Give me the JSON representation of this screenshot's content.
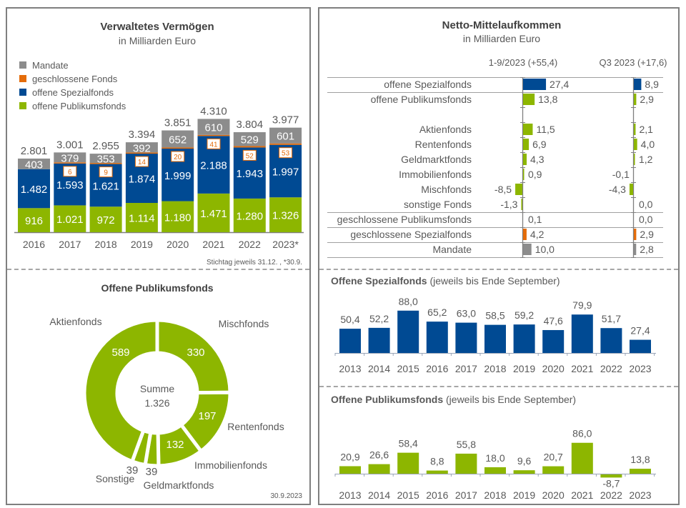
{
  "colors": {
    "mandate": "#8c8c8c",
    "geschlossene": "#e46c0a",
    "spezial": "#004a93",
    "publikums": "#8db600",
    "text": "#595959",
    "text_dark": "#404040",
    "axis": "#7f7f7f"
  },
  "chart_data": [
    {
      "id": "verwaltetes-vermoegen",
      "type": "bar",
      "stacked": true,
      "title": "Verwaltetes Vermögen",
      "subtitle": "in Milliarden Euro",
      "categories": [
        "2016",
        "2017",
        "2018",
        "2019",
        "2020",
        "2021",
        "2022",
        "2023*"
      ],
      "series": [
        {
          "name": "offene Publikumsfonds",
          "key": "publikums",
          "values": [
            916,
            1021,
            972,
            1114,
            1180,
            1471,
            1280,
            1326
          ],
          "labels": [
            "916",
            "1.021",
            "972",
            "1.114",
            "1.180",
            "1.471",
            "1.280",
            "1.326"
          ]
        },
        {
          "name": "offene Spezialfonds",
          "key": "spezial",
          "values": [
            1482,
            1593,
            1621,
            1874,
            1999,
            2188,
            1943,
            1997
          ],
          "labels": [
            "1.482",
            "1.593",
            "1.621",
            "1.874",
            "1.999",
            "2.188",
            "1.943",
            "1.997"
          ]
        },
        {
          "name": "geschlossene Fonds",
          "key": "geschlossene",
          "values": [
            0,
            6,
            9,
            14,
            20,
            41,
            52,
            53
          ],
          "labels": [
            "",
            "6",
            "9",
            "14",
            "20",
            "41",
            "52",
            "53"
          ]
        },
        {
          "name": "Mandate",
          "key": "mandate",
          "values": [
            403,
            379,
            353,
            392,
            652,
            610,
            529,
            601
          ],
          "labels": [
            "403",
            "379",
            "353",
            "392",
            "652",
            "610",
            "529",
            "601"
          ]
        }
      ],
      "totals": [
        "2.801",
        "3.001",
        "2.955",
        "3.394",
        "3.851",
        "4.310",
        "3.804",
        "3.977"
      ],
      "legend": [
        "Mandate",
        "geschlossene Fonds",
        "offene Spezialfonds",
        "offene Publikumsfonds"
      ],
      "legend_position": "top-left",
      "footnote": "Stichtag  jeweils 31.12. , *30.9.",
      "ylim": [
        0,
        4600
      ]
    },
    {
      "id": "offene-publikumsfonds-donut",
      "type": "pie",
      "donut": true,
      "title": "Offene Publikumsfonds",
      "center_label": "Summe",
      "center_value": "1.326",
      "slices": [
        {
          "name": "Mischfonds",
          "value": 330,
          "label": "330"
        },
        {
          "name": "Rentenfonds",
          "value": 197,
          "label": "197"
        },
        {
          "name": "Immobilienfonds",
          "value": 132,
          "label": "132"
        },
        {
          "name": "Geldmarktfonds",
          "value": 39,
          "label": "39"
        },
        {
          "name": "Sonstige",
          "value": 39,
          "label": "39"
        },
        {
          "name": "Aktienfonds",
          "value": 589,
          "label": "589"
        }
      ],
      "footnote": "30.9.2023"
    },
    {
      "id": "netto-mittelaufkommen",
      "type": "bar",
      "orientation": "horizontal",
      "title": "Netto-Mittelaufkommen",
      "subtitle": "in Milliarden Euro",
      "columns": [
        "1-9/2023 (+55,4)",
        "Q3 2023 (+17,6)"
      ],
      "rows": [
        {
          "name": "offene Spezialfonds",
          "key": "spezial",
          "values": [
            27.4,
            8.9
          ],
          "labels": [
            "27,4",
            "8,9"
          ],
          "group": 0
        },
        {
          "name": "offene Publikumsfonds",
          "key": "publikums",
          "values": [
            13.8,
            2.9
          ],
          "labels": [
            "13,8",
            "2,9"
          ],
          "group": 0
        },
        {
          "name": "Aktienfonds",
          "key": "publikums",
          "values": [
            11.5,
            2.1
          ],
          "labels": [
            "11,5",
            "2,1"
          ],
          "group": 1
        },
        {
          "name": "Rentenfonds",
          "key": "publikums",
          "values": [
            6.9,
            4.0
          ],
          "labels": [
            "6,9",
            "4,0"
          ],
          "group": 1
        },
        {
          "name": "Geldmarktfonds",
          "key": "publikums",
          "values": [
            4.3,
            1.2
          ],
          "labels": [
            "4,3",
            "1,2"
          ],
          "group": 1
        },
        {
          "name": "Immobilienfonds",
          "key": "publikums",
          "values": [
            0.9,
            -0.1
          ],
          "labels": [
            "0,9",
            "-0,1"
          ],
          "group": 1
        },
        {
          "name": "Mischfonds",
          "key": "publikums",
          "values": [
            -8.5,
            -4.3
          ],
          "labels": [
            "-8,5",
            "-4,3"
          ],
          "group": 1
        },
        {
          "name": "sonstige Fonds",
          "key": "publikums",
          "values": [
            -1.3,
            0.0
          ],
          "labels": [
            "-1,3",
            "0,0"
          ],
          "group": 1
        },
        {
          "name": "geschlossene Publikumsfonds",
          "key": "geschlossene",
          "values": [
            0.1,
            0.0
          ],
          "labels": [
            "0,1",
            "0,0"
          ],
          "group": 2
        },
        {
          "name": "geschlossene Spezialfonds",
          "key": "geschlossene",
          "values": [
            4.2,
            2.9
          ],
          "labels": [
            "4,2",
            "2,9"
          ],
          "group": 2
        },
        {
          "name": "Mandate",
          "key": "mandate",
          "values": [
            10.0,
            2.8
          ],
          "labels": [
            "10,0",
            "2,8"
          ],
          "group": 2
        }
      ]
    },
    {
      "id": "offene-spezialfonds-history",
      "type": "bar",
      "title_bold": "Offene Spezialfonds",
      "title_rest": " (jeweils bis Ende September)",
      "color_key": "spezial",
      "categories": [
        "2013",
        "2014",
        "2015",
        "2016",
        "2017",
        "2018",
        "2019",
        "2020",
        "2021",
        "2022",
        "2023"
      ],
      "values": [
        50.4,
        52.2,
        88.0,
        65.2,
        63.0,
        58.5,
        59.2,
        47.6,
        79.9,
        51.7,
        27.4
      ],
      "labels": [
        "50,4",
        "52,2",
        "88,0",
        "65,2",
        "63,0",
        "58,5",
        "59,2",
        "47,6",
        "79,9",
        "51,7",
        "27,4"
      ],
      "ylim": [
        0,
        90
      ]
    },
    {
      "id": "offene-publikumsfonds-history",
      "type": "bar",
      "title_bold": "Offene Publikumsfonds",
      "title_rest": " (jeweils bis Ende September)",
      "color_key": "publikums",
      "categories": [
        "2013",
        "2014",
        "2015",
        "2016",
        "2017",
        "2018",
        "2019",
        "2020",
        "2021",
        "2022",
        "2023"
      ],
      "values": [
        20.9,
        26.6,
        58.4,
        8.8,
        55.8,
        18.0,
        9.6,
        20.7,
        86.0,
        -8.7,
        13.8
      ],
      "labels": [
        "20,9",
        "26,6",
        "58,4",
        "8,8",
        "55,8",
        "18,0",
        "9,6",
        "20,7",
        "86,0",
        "-8,7",
        "13,8"
      ],
      "ylim": [
        -10,
        90
      ]
    }
  ]
}
